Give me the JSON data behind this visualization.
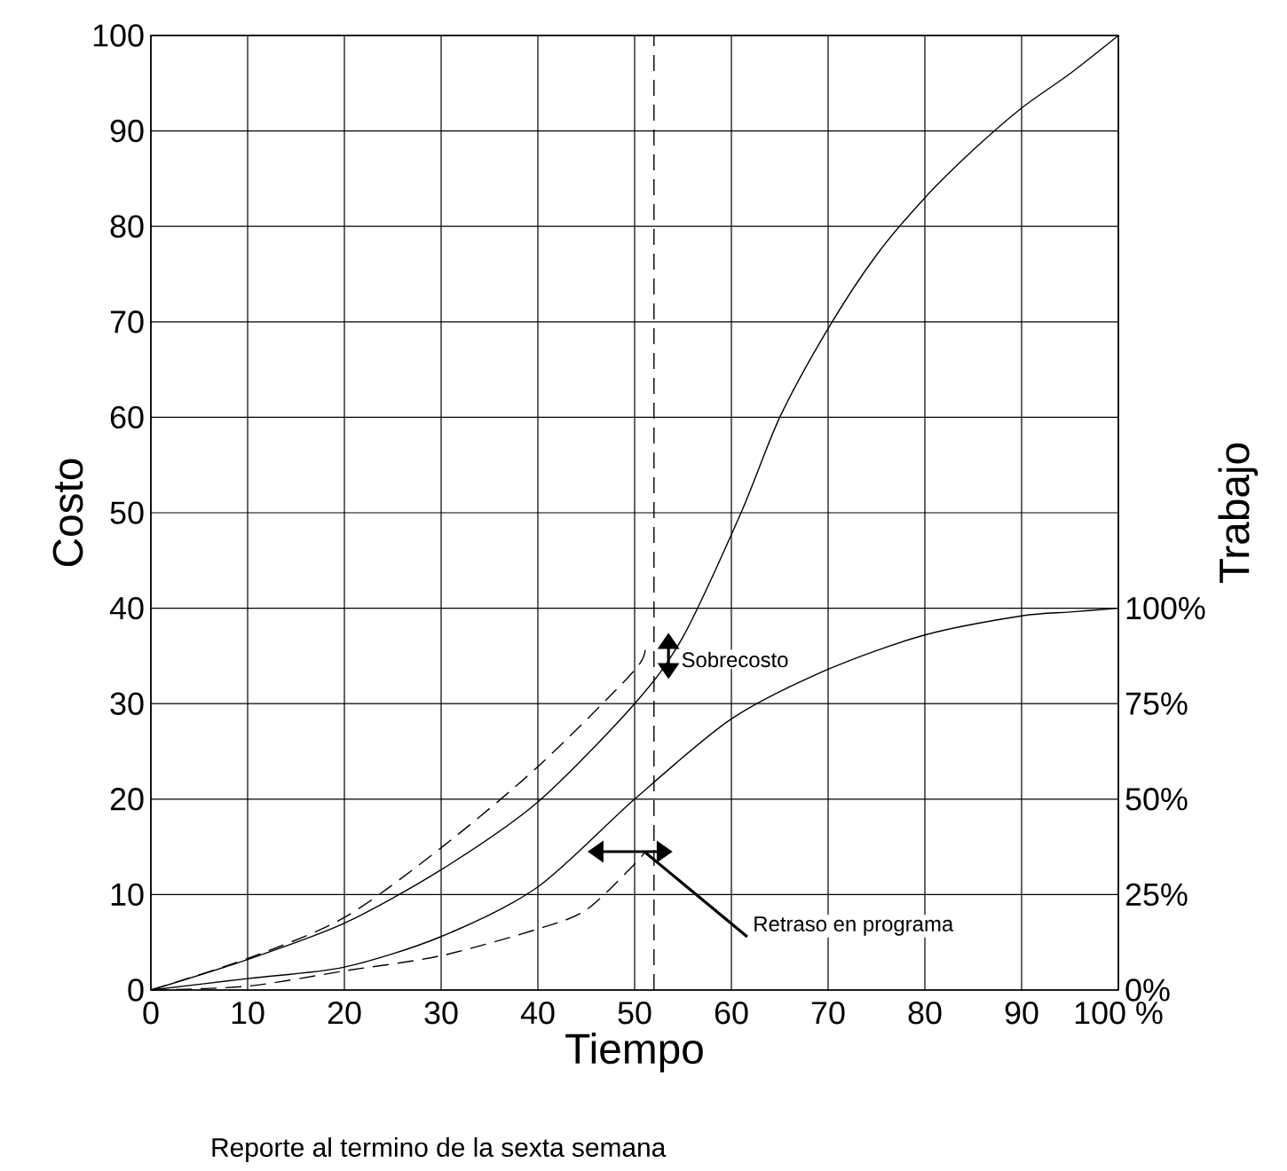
{
  "chart_data": {
    "type": "line",
    "xlabel": "Tiempo",
    "ylabel": "Costo",
    "y2label": "Trabajo",
    "xlim": [
      0,
      100
    ],
    "ylim": [
      0,
      100
    ],
    "y2lim": [
      0,
      250
    ],
    "xticks": [
      0,
      10,
      20,
      30,
      40,
      50,
      60,
      70,
      80,
      90,
      {
        "value": 100,
        "label": "100 %"
      }
    ],
    "yticks": [
      0,
      10,
      20,
      30,
      40,
      50,
      60,
      70,
      80,
      90,
      100
    ],
    "y2ticks": [
      {
        "value": 0,
        "label": "0%"
      },
      {
        "value": 25,
        "label": "25%"
      },
      {
        "value": 50,
        "label": "50%"
      },
      {
        "value": 75,
        "label": "75%"
      },
      {
        "value": 100,
        "label": "100%"
      }
    ],
    "grid": true,
    "marker": "none",
    "series": [
      {
        "color": "#000000",
        "line_style": "solid",
        "x": [
          0,
          10,
          20,
          30,
          40,
          50,
          55,
          61,
          65,
          70,
          75,
          80,
          85,
          90,
          95,
          100
        ],
        "values": [
          0,
          3.2,
          7,
          12.6,
          19.7,
          30,
          37,
          50,
          60,
          69.3,
          77,
          83,
          88,
          92.4,
          96,
          100
        ]
      },
      {
        "color": "#000000",
        "line_style": "dashed",
        "x": [
          0,
          10,
          20,
          30,
          40,
          50,
          51
        ],
        "values": [
          0,
          3.3,
          7.6,
          14.9,
          23.4,
          33.5,
          36
        ]
      },
      {
        "color": "#000000",
        "line_style": "solid",
        "axis": "y2",
        "x": [
          0,
          10,
          20,
          30,
          40,
          50,
          60,
          70,
          80,
          90,
          95,
          100
        ],
        "values": [
          0,
          3,
          6,
          14,
          27,
          50,
          71,
          84,
          93,
          98,
          99,
          100
        ]
      },
      {
        "color": "#000000",
        "line_style": "dashed",
        "axis": "y2",
        "x": [
          0,
          10,
          20,
          30,
          40,
          45,
          50,
          51
        ],
        "values": [
          0,
          1,
          5,
          9,
          16,
          21,
          33,
          36
        ]
      }
    ],
    "ref_lines": [
      {
        "axis": "x",
        "value": 52,
        "color": "#000000",
        "line_style": "dashed"
      }
    ],
    "annotations": [
      {
        "text": "Sobrecosto",
        "x": 53.5,
        "y": 35
      },
      {
        "text": "Retraso en programa",
        "x": 51,
        "y": 14.5
      },
      "Reporte al termino de la sexta semana"
    ]
  }
}
